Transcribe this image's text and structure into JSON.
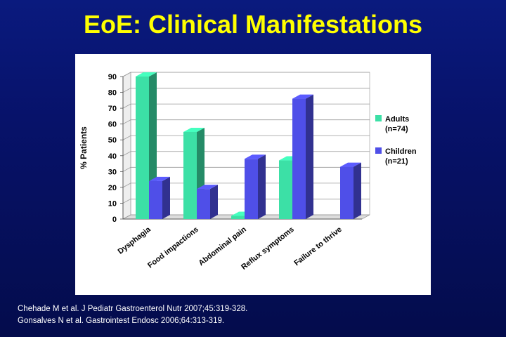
{
  "slide": {
    "title": "EoE: Clinical Manifestations"
  },
  "references": [
    "Chehade M et al. J Pediatr Gastroenterol Nutr 2007;45:319-328.",
    "Gonsalves N et al. Gastrointest Endosc 2006;64:313-319."
  ],
  "colors": {
    "background": "#07126a",
    "title": "#ffff00",
    "adults": "#3ce0a6",
    "children": "#4f4fe8"
  },
  "chart_data": {
    "type": "bar",
    "style": "3d-clustered",
    "categories": [
      "Dysphagia",
      "Food impactions",
      "Abdominal pain",
      "Reflux symptoms",
      "Failure to thrive"
    ],
    "series": [
      {
        "name": "Adults",
        "name_line2": "(n=74)",
        "values": [
          90,
          55,
          2,
          37,
          0
        ],
        "color": "#3ce0a6"
      },
      {
        "name": "Children",
        "name_line2": "(n=21)",
        "values": [
          24,
          19,
          38,
          76,
          33
        ],
        "color": "#4f4fe8"
      }
    ],
    "ylabel": "% Patients",
    "xlabel": "",
    "ylim": [
      0,
      90
    ],
    "yticks": [
      0,
      10,
      20,
      30,
      40,
      50,
      60,
      70,
      80,
      90
    ],
    "grid": true,
    "legend": "right"
  }
}
